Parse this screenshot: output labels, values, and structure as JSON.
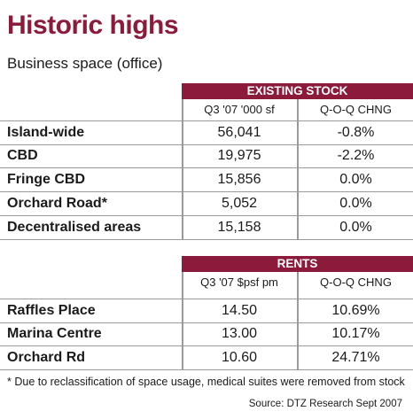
{
  "title": "Historic highs",
  "subtitle": "Business space (office)",
  "chart_data": [
    {
      "type": "table",
      "title": "EXISTING STOCK",
      "columns": [
        "",
        "Q3 '07 '000 sf",
        "Q-O-Q CHNG"
      ],
      "rows": [
        {
          "label": "Island-wide",
          "value": "56,041",
          "change": "-0.8%"
        },
        {
          "label": "CBD",
          "value": "19,975",
          "change": "-2.2%"
        },
        {
          "label": "Fringe CBD",
          "value": "15,856",
          "change": "0.0%"
        },
        {
          "label": "Orchard Road*",
          "value": "5,052",
          "change": "0.0%"
        },
        {
          "label": "Decentralised areas",
          "value": "15,158",
          "change": "0.0%"
        }
      ]
    },
    {
      "type": "table",
      "title": "RENTS",
      "columns": [
        "",
        "Q3 '07 $psf pm",
        "Q-O-Q CHNG"
      ],
      "rows": [
        {
          "label": "Raffles Place",
          "value": "14.50",
          "change": "10.69%"
        },
        {
          "label": "Marina Centre",
          "value": "13.00",
          "change": "10.17%"
        },
        {
          "label": "Orchard Rd",
          "value": "10.60",
          "change": "24.71%"
        }
      ]
    }
  ],
  "footnote": "* Due to reclassification of space usage, medical suites were removed from stock",
  "source": "Source: DTZ Research Sept 2007",
  "colors": {
    "accent": "#8b1a3b",
    "rule": "#9a9a9a"
  }
}
